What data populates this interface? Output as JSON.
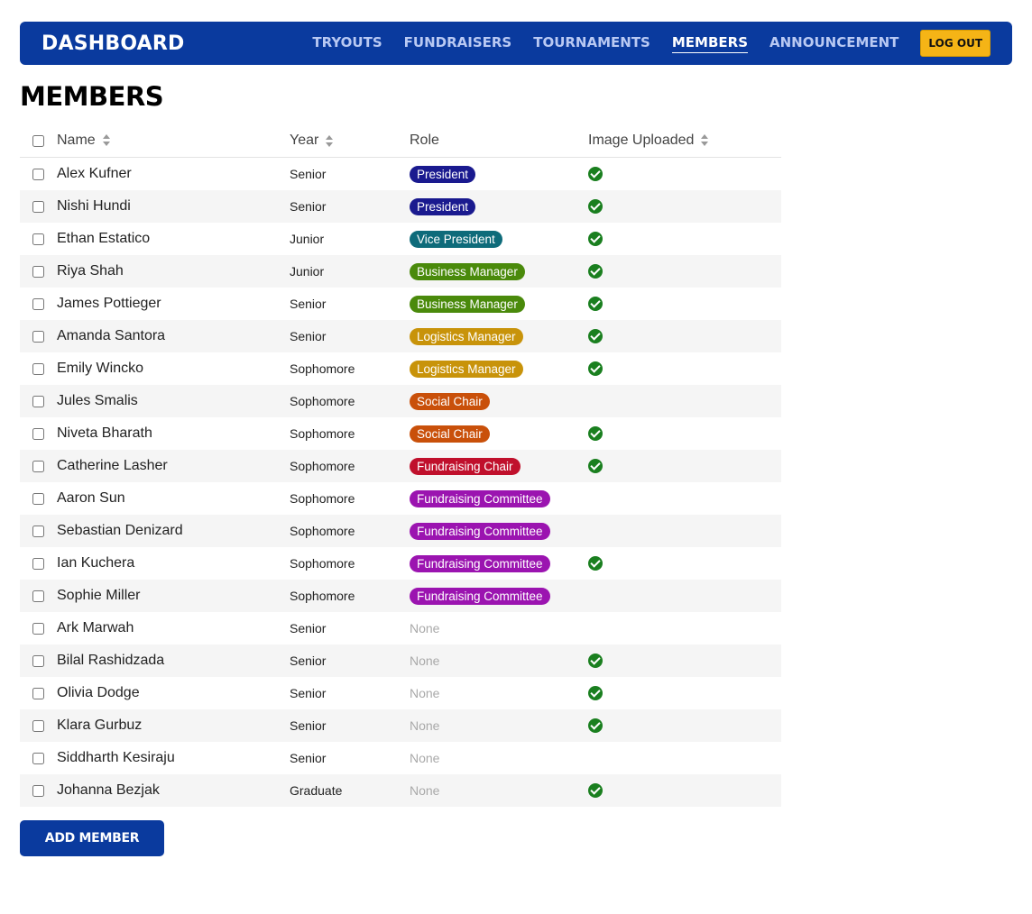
{
  "nav": {
    "brand": "DASHBOARD",
    "links": [
      {
        "label": "TRYOUTS",
        "active": false
      },
      {
        "label": "FUNDRAISERS",
        "active": false
      },
      {
        "label": "TOURNAMENTS",
        "active": false
      },
      {
        "label": "MEMBERS",
        "active": true
      },
      {
        "label": "ANNOUNCEMENT",
        "active": false
      }
    ],
    "logout_label": "LOG OUT"
  },
  "page_title": "MEMBERS",
  "table": {
    "columns": {
      "name": "Name",
      "year": "Year",
      "role": "Role",
      "image": "Image Uploaded"
    },
    "role_colors": {
      "President": "#1a1a8f",
      "Vice President": "#0e6b7a",
      "Business Manager": "#4a8a0b",
      "Logistics Manager": "#c8930a",
      "Social Chair": "#c9500a",
      "Fundraising Chair": "#c0102c",
      "Fundraising Committee": "#9b14b0"
    },
    "rows": [
      {
        "name": "Alex Kufner",
        "year": "Senior",
        "role": "President",
        "image": true
      },
      {
        "name": "Nishi Hundi",
        "year": "Senior",
        "role": "President",
        "image": true
      },
      {
        "name": "Ethan Estatico",
        "year": "Junior",
        "role": "Vice President",
        "image": true
      },
      {
        "name": "Riya Shah",
        "year": "Junior",
        "role": "Business Manager",
        "image": true
      },
      {
        "name": "James Pottieger",
        "year": "Senior",
        "role": "Business Manager",
        "image": true
      },
      {
        "name": "Amanda Santora",
        "year": "Senior",
        "role": "Logistics Manager",
        "image": true
      },
      {
        "name": "Emily Wincko",
        "year": "Sophomore",
        "role": "Logistics Manager",
        "image": true
      },
      {
        "name": "Jules Smalis",
        "year": "Sophomore",
        "role": "Social Chair",
        "image": false
      },
      {
        "name": "Niveta Bharath",
        "year": "Sophomore",
        "role": "Social Chair",
        "image": true
      },
      {
        "name": "Catherine Lasher",
        "year": "Sophomore",
        "role": "Fundraising Chair",
        "image": true
      },
      {
        "name": "Aaron Sun",
        "year": "Sophomore",
        "role": "Fundraising Committee",
        "image": false
      },
      {
        "name": "Sebastian Denizard",
        "year": "Sophomore",
        "role": "Fundraising Committee",
        "image": false
      },
      {
        "name": "Ian Kuchera",
        "year": "Sophomore",
        "role": "Fundraising Committee",
        "image": true
      },
      {
        "name": "Sophie Miller",
        "year": "Sophomore",
        "role": "Fundraising Committee",
        "image": false
      },
      {
        "name": "Ark Marwah",
        "year": "Senior",
        "role": "None",
        "image": false
      },
      {
        "name": "Bilal Rashidzada",
        "year": "Senior",
        "role": "None",
        "image": true
      },
      {
        "name": "Olivia Dodge",
        "year": "Senior",
        "role": "None",
        "image": true
      },
      {
        "name": "Klara Gurbuz",
        "year": "Senior",
        "role": "None",
        "image": true
      },
      {
        "name": "Siddharth Kesiraju",
        "year": "Senior",
        "role": "None",
        "image": false
      },
      {
        "name": "Johanna Bezjak",
        "year": "Graduate",
        "role": "None",
        "image": true
      }
    ]
  },
  "add_member_label": "ADD MEMBER"
}
